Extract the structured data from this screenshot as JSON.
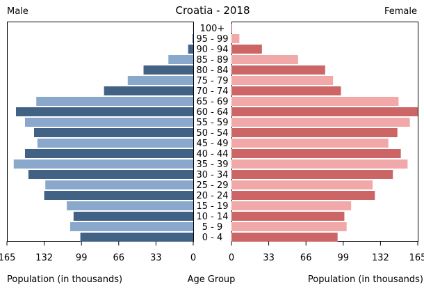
{
  "chart_data": {
    "type": "bar",
    "title": "Croatia - 2018",
    "left_label": "Male",
    "right_label": "Female",
    "xlabel_left": "Population (in thousands)",
    "xlabel_center": "Age Group",
    "xlabel_right": "Population (in thousands)",
    "xlim": [
      0,
      165
    ],
    "xticks": [
      0,
      33,
      66,
      99,
      132,
      165
    ],
    "grid": false,
    "categories": [
      "100+",
      "95 - 99",
      "90 - 94",
      "85 - 89",
      "80 - 84",
      "75 - 79",
      "70 - 74",
      "65 - 69",
      "60 - 64",
      "55 - 59",
      "50 - 54",
      "45 - 49",
      "40 - 44",
      "35 - 39",
      "30 - 34",
      "25 - 29",
      "20 - 24",
      "15 - 19",
      "10 - 14",
      "5 - 9",
      "0 - 4"
    ],
    "series": [
      {
        "name": "Male",
        "values": [
          0.1,
          1,
          4.5,
          22,
          44,
          58,
          79,
          139,
          157,
          149,
          141,
          138,
          149,
          159,
          146,
          131,
          132,
          112,
          106,
          109,
          100
        ]
      },
      {
        "name": "Female",
        "values": [
          0.5,
          7,
          27,
          59,
          83,
          90,
          97,
          148,
          165,
          158,
          147,
          139,
          150,
          156,
          143,
          125,
          127,
          106,
          100,
          102,
          94
        ]
      }
    ],
    "colors": {
      "male_dark": "#426285",
      "male_light": "#89a8cc",
      "female_dark": "#cc6666",
      "female_light": "#f0a8a8",
      "axis": "#000000",
      "frame": "#000000"
    }
  }
}
